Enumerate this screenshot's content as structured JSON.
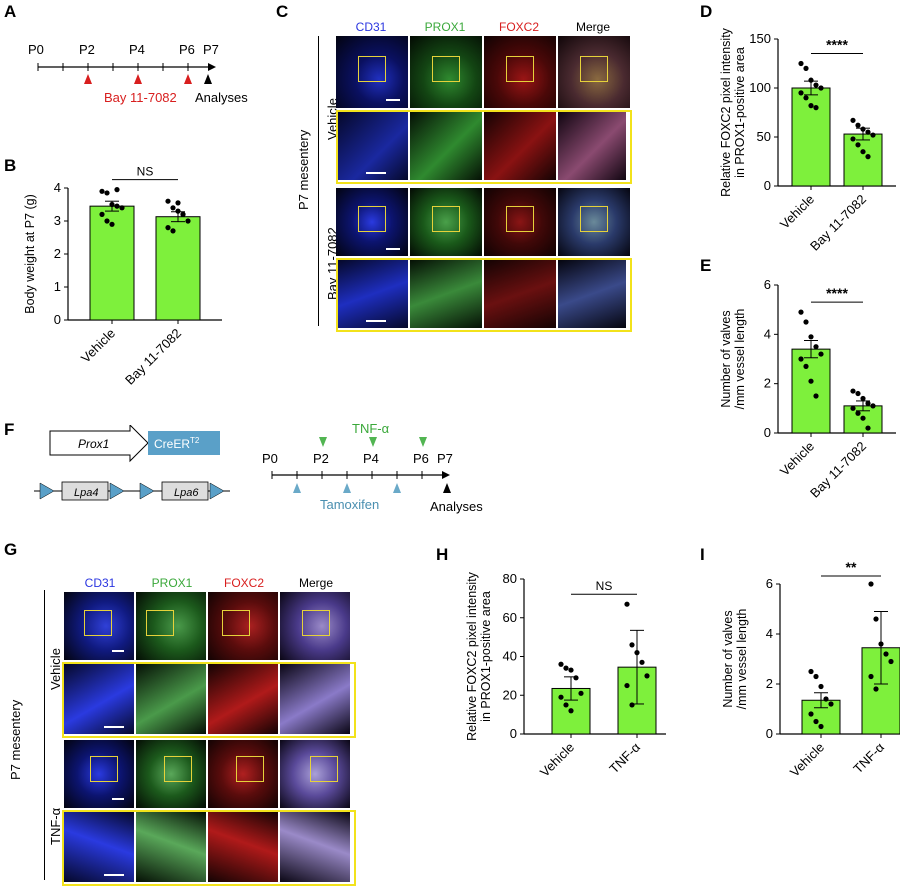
{
  "panels": {
    "A": "A",
    "B": "B",
    "C": "C",
    "D": "D",
    "E": "E",
    "F": "F",
    "G": "G",
    "H": "H",
    "I": "I"
  },
  "timeline_A": {
    "ticks": [
      "P0",
      "P2",
      "P4",
      "P6",
      "P7"
    ],
    "treatment": "Bay 11-7082",
    "analyses": "Analyses"
  },
  "timeline_F": {
    "ticks": [
      "P0",
      "P2",
      "P4",
      "P6",
      "P7"
    ],
    "top_treatment": "TNF-α",
    "bottom_treatment": "Tamoxifen",
    "analyses": "Analyses",
    "constructs": {
      "prox1": "Prox1",
      "creert2": "CreER",
      "creert2_sup": "T2",
      "lpa4": "Lpa4",
      "lpa6": "Lpa6"
    }
  },
  "micrograph_C": {
    "columns": [
      "CD31",
      "PROX1",
      "FOXC2",
      "Merge"
    ],
    "rows": [
      "Vehicle",
      "Bay 11-7082"
    ],
    "side_label": "P7 mesentery"
  },
  "micrograph_G": {
    "columns": [
      "CD31",
      "PROX1",
      "FOXC2",
      "Merge"
    ],
    "rows": [
      "Vehicle",
      "TNF-α"
    ],
    "side_label": "P7 mesentery"
  },
  "colors": {
    "bar": "#7ef03c",
    "cd31": "#1e2bd6",
    "prox1": "#3aa83a",
    "foxc2": "#d81e1e",
    "inset": "#f2e21b",
    "marker_red": "#d81e1e",
    "marker_blue": "#6aa9c8",
    "marker_green": "#52b552"
  },
  "chart_data": [
    {
      "id": "B",
      "type": "bar",
      "categories": [
        "Vehicle",
        "Bay 11-7082"
      ],
      "values": [
        3.45,
        3.13
      ],
      "errors": [
        0.15,
        0.15
      ],
      "ylabel": "Body weight at P7 (g)",
      "ylim": [
        0,
        4
      ],
      "yticks": [
        0,
        1,
        2,
        3,
        4
      ],
      "significance": "NS",
      "points": [
        [
          3.9,
          3.85,
          3.5,
          3.45,
          3.4,
          3.2,
          3.0,
          2.9,
          3.95
        ],
        [
          3.6,
          3.4,
          3.3,
          3.2,
          3.0,
          2.8,
          2.7,
          3.55,
          3.2
        ]
      ]
    },
    {
      "id": "D",
      "type": "bar",
      "categories": [
        "Vehicle",
        "Bay 11-7082"
      ],
      "values": [
        100,
        53
      ],
      "errors": [
        7,
        6
      ],
      "ylabel": "Relative FOXC2 pixel intensity in PROX1-positive area",
      "ylim": [
        0,
        150
      ],
      "yticks": [
        0,
        50,
        100,
        150
      ],
      "significance": "****",
      "points": [
        [
          125,
          120,
          108,
          103,
          100,
          95,
          90,
          82,
          80
        ],
        [
          67,
          62,
          58,
          55,
          52,
          48,
          42,
          35,
          30
        ]
      ]
    },
    {
      "id": "E",
      "type": "bar",
      "categories": [
        "Vehicle",
        "Bay 11-7082"
      ],
      "values": [
        3.4,
        1.1
      ],
      "errors": [
        0.35,
        0.2
      ],
      "ylabel": "Number of valves /mm vessel length",
      "ylim": [
        0,
        6
      ],
      "yticks": [
        0,
        2,
        4,
        6
      ],
      "significance": "****",
      "points": [
        [
          4.9,
          4.5,
          3.9,
          3.5,
          3.2,
          3.0,
          2.7,
          2.1,
          1.5
        ],
        [
          1.7,
          1.6,
          1.4,
          1.2,
          1.1,
          1.0,
          0.8,
          0.6,
          0.2
        ]
      ]
    },
    {
      "id": "H",
      "type": "bar",
      "categories": [
        "Vehicle",
        "TNF-α"
      ],
      "values": [
        23.5,
        34.5
      ],
      "errors": [
        6,
        19
      ],
      "ylabel": "Relative FOXC2 pixel intensity in PROX1-positive area",
      "ylim": [
        0,
        80
      ],
      "yticks": [
        0,
        20,
        40,
        60,
        80
      ],
      "significance": "NS",
      "points": [
        [
          36,
          34,
          33,
          29,
          21,
          19,
          15,
          12
        ],
        [
          67,
          46,
          42,
          37,
          30,
          25,
          15
        ]
      ]
    },
    {
      "id": "I",
      "type": "bar",
      "categories": [
        "Vehicle",
        "TNF-α"
      ],
      "values": [
        1.35,
        3.45
      ],
      "errors": [
        0.3,
        1.45
      ],
      "ylabel": "Number of valves /mm vessel length",
      "ylim": [
        0,
        6
      ],
      "yticks": [
        0,
        2,
        4,
        6
      ],
      "significance": "**",
      "points": [
        [
          2.5,
          2.3,
          1.9,
          1.4,
          1.2,
          0.8,
          0.5,
          0.3
        ],
        [
          6.0,
          4.6,
          3.6,
          3.2,
          2.9,
          2.3,
          1.8
        ]
      ]
    }
  ]
}
